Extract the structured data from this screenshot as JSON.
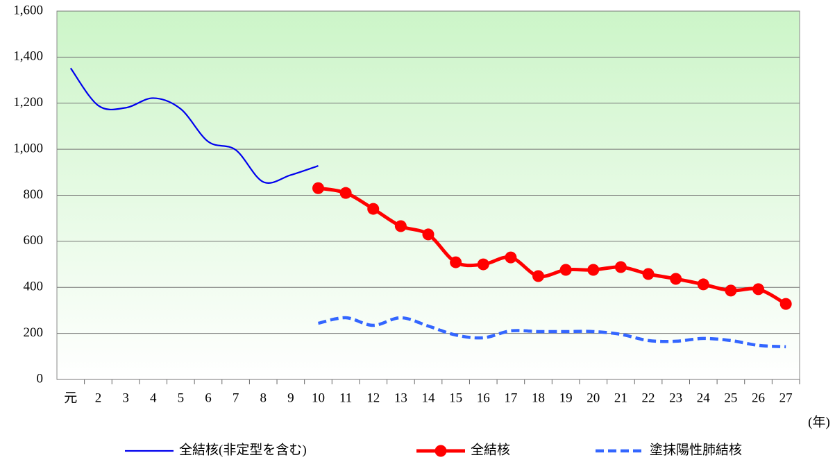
{
  "chart_data": {
    "type": "line",
    "x_label": "(年)",
    "categories": [
      "元",
      "2",
      "3",
      "4",
      "5",
      "6",
      "7",
      "8",
      "9",
      "10",
      "11",
      "12",
      "13",
      "14",
      "15",
      "16",
      "17",
      "18",
      "19",
      "20",
      "21",
      "22",
      "23",
      "24",
      "25",
      "26",
      "27"
    ],
    "series": [
      {
        "name": "全結核(非定型を含む)",
        "color": "#0000ee",
        "style": "solid",
        "markers": false,
        "values": [
          1352,
          1190,
          1180,
          1222,
          1175,
          1033,
          997,
          858,
          888,
          928,
          null,
          null,
          null,
          null,
          null,
          null,
          null,
          null,
          null,
          null,
          null,
          null,
          null,
          null,
          null,
          null,
          null
        ]
      },
      {
        "name": "全結核",
        "color": "#ff0000",
        "style": "solid",
        "markers": true,
        "values": [
          null,
          null,
          null,
          null,
          null,
          null,
          null,
          null,
          null,
          831,
          810,
          741,
          666,
          630,
          509,
          500,
          530,
          449,
          476,
          476,
          488,
          458,
          437,
          413,
          386,
          392,
          328
        ]
      },
      {
        "name": "塗抹陽性肺結核",
        "color": "#3366ff",
        "style": "dashed",
        "markers": false,
        "values": [
          null,
          null,
          null,
          null,
          null,
          null,
          null,
          null,
          null,
          244,
          268,
          235,
          268,
          232,
          193,
          181,
          211,
          208,
          208,
          208,
          196,
          169,
          166,
          178,
          169,
          148,
          142
        ]
      }
    ],
    "ylim": [
      0,
      1600
    ],
    "yticks": [
      0,
      200,
      400,
      600,
      800,
      {
        "value": 1000,
        "label": "1,000"
      },
      {
        "value": 1200,
        "label": "1,200"
      },
      {
        "value": 1400,
        "label": "1,400"
      },
      {
        "value": 1600,
        "label": "1,600"
      }
    ],
    "grid": true,
    "legend": "bottom"
  }
}
